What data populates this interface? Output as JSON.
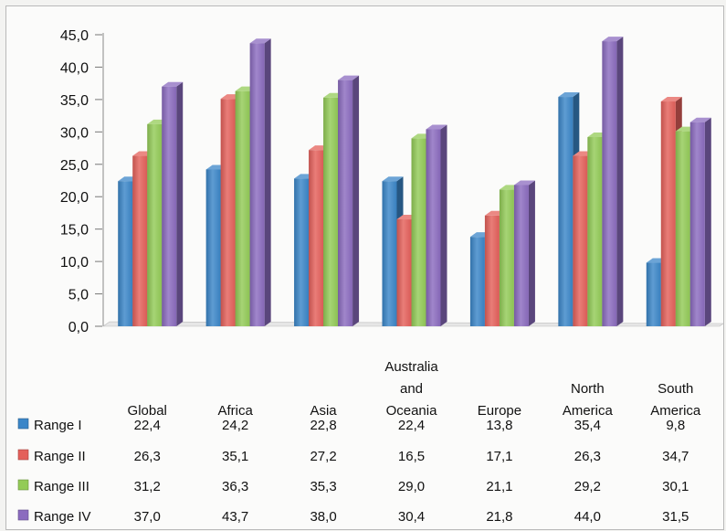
{
  "chart_data": {
    "type": "bar",
    "categories": [
      "Global",
      "Africa",
      "Asia",
      "Australia and Oceania",
      "Europe",
      "North America",
      "South America"
    ],
    "category_label_lines": [
      [
        "Global"
      ],
      [
        "Africa"
      ],
      [
        "Asia"
      ],
      [
        "Australia",
        "and",
        "Oceania"
      ],
      [
        "Europe"
      ],
      [
        "North",
        "America"
      ],
      [
        "South",
        "America"
      ]
    ],
    "series": [
      {
        "name": "Range I",
        "color": "#3b86c8",
        "values": [
          22.4,
          24.2,
          22.8,
          22.4,
          13.8,
          35.4,
          9.8
        ],
        "labels": [
          "22,4",
          "24,2",
          "22,8",
          "22,4",
          "13,8",
          "35,4",
          "9,8"
        ]
      },
      {
        "name": "Range II",
        "color": "#e4605a",
        "values": [
          26.3,
          35.1,
          27.2,
          16.5,
          17.1,
          26.3,
          34.7
        ],
        "labels": [
          "26,3",
          "35,1",
          "27,2",
          "16,5",
          "17,1",
          "26,3",
          "34,7"
        ]
      },
      {
        "name": "Range III",
        "color": "#93cb57",
        "values": [
          31.2,
          36.3,
          35.3,
          29.0,
          21.1,
          29.2,
          30.1
        ],
        "labels": [
          "31,2",
          "36,3",
          "35,3",
          "29,0",
          "21,1",
          "29,2",
          "30,1"
        ]
      },
      {
        "name": "Range IV",
        "color": "#8b6bbf",
        "values": [
          37.0,
          43.7,
          38.0,
          30.4,
          21.8,
          44.0,
          31.5
        ],
        "labels": [
          "37,0",
          "43,7",
          "38,0",
          "30,4",
          "21,8",
          "44,0",
          "31,5"
        ]
      }
    ],
    "y_ticks": [
      0,
      5,
      10,
      15,
      20,
      25,
      30,
      35,
      40,
      45
    ],
    "y_tick_labels": [
      "0,0",
      "5,0",
      "10,0",
      "15,0",
      "20,0",
      "25,0",
      "30,0",
      "35,0",
      "40,0",
      "45,0"
    ],
    "ylim": [
      0,
      45
    ],
    "grid": false,
    "legend": "data table below chart",
    "title": "",
    "xlabel": "",
    "ylabel": ""
  }
}
